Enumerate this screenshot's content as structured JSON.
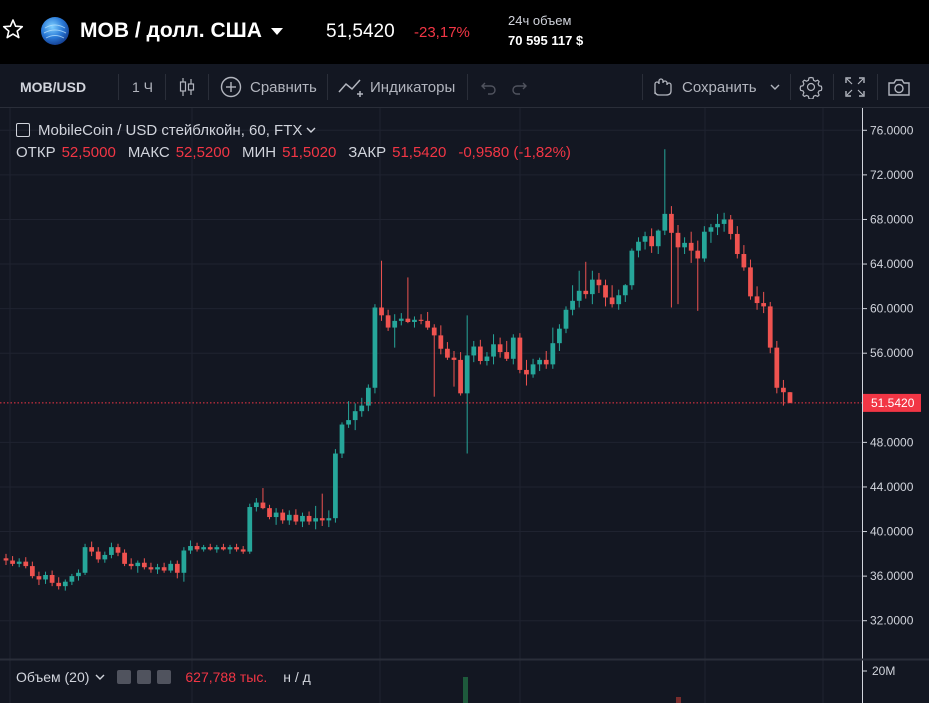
{
  "ticker": {
    "symbol": "MOB / долл. США",
    "price": "51,5420",
    "change": "-23,17%",
    "volume_label": "24ч объем",
    "volume_value": "70 595 117 $"
  },
  "toolbar": {
    "symbol": "MOB/USD",
    "interval": "1 Ч",
    "compare": "Сравнить",
    "indicators": "Индикаторы",
    "save": "Сохранить"
  },
  "legend": {
    "title": "MobileCoin / USD стейблкойн, 60, FTX",
    "open_label": "ОТКР",
    "open": "52,5000",
    "high_label": "МАКС",
    "high": "52,5200",
    "low_label": "МИН",
    "low": "51,5020",
    "close_label": "ЗАКР",
    "close": "51,5420",
    "change": "-0,9580 (-1,82%)"
  },
  "volume_legend": {
    "label": "Объем (20)",
    "value": "627,788 тыс.",
    "na": "н / д"
  },
  "colors": {
    "up": "#26a69a",
    "down": "#ef5350",
    "background": "#131722",
    "grid": "#1f2330",
    "axis_text": "#d1d4dc",
    "last_price": "#f23645"
  },
  "chart_data": {
    "type": "candlestick",
    "ylim": [
      30.0,
      78.0
    ],
    "y_ticks": [
      "76.0000",
      "72.0000",
      "68.0000",
      "64.0000",
      "60.0000",
      "56.0000",
      "48.0000",
      "44.0000",
      "40.0000",
      "36.0000",
      "32.0000"
    ],
    "last_price": "51.5420",
    "volume_axis_label": "20M",
    "grid": true,
    "candles": [
      [
        37.6,
        38.0,
        37.0,
        37.4
      ],
      [
        37.4,
        37.8,
        36.9,
        37.1
      ],
      [
        37.1,
        37.6,
        36.8,
        37.3
      ],
      [
        37.3,
        37.7,
        36.7,
        36.9
      ],
      [
        36.9,
        37.3,
        35.8,
        36.0
      ],
      [
        36.0,
        36.4,
        35.2,
        35.7
      ],
      [
        35.7,
        36.4,
        35.3,
        36.1
      ],
      [
        36.1,
        36.5,
        35.1,
        35.4
      ],
      [
        35.4,
        35.9,
        34.8,
        35.1
      ],
      [
        35.1,
        35.7,
        34.7,
        35.5
      ],
      [
        35.5,
        36.2,
        35.2,
        36.0
      ],
      [
        36.0,
        36.6,
        35.6,
        36.3
      ],
      [
        36.3,
        38.9,
        36.1,
        38.6
      ],
      [
        38.6,
        39.1,
        37.8,
        38.2
      ],
      [
        38.2,
        38.6,
        37.2,
        37.5
      ],
      [
        37.5,
        38.2,
        37.2,
        37.9
      ],
      [
        37.9,
        39.0,
        37.6,
        38.6
      ],
      [
        38.6,
        38.9,
        37.8,
        38.1
      ],
      [
        38.1,
        38.4,
        36.9,
        37.1
      ],
      [
        37.1,
        37.6,
        36.6,
        36.9
      ],
      [
        36.9,
        37.4,
        36.3,
        37.2
      ],
      [
        37.2,
        37.6,
        36.6,
        36.8
      ],
      [
        36.8,
        37.2,
        36.3,
        36.6
      ],
      [
        36.6,
        37.1,
        36.2,
        36.8
      ],
      [
        36.8,
        37.2,
        36.3,
        36.5
      ],
      [
        36.5,
        37.4,
        36.3,
        37.1
      ],
      [
        37.1,
        37.4,
        35.8,
        36.3
      ],
      [
        36.3,
        38.6,
        35.5,
        38.3
      ],
      [
        38.3,
        39.2,
        38.0,
        38.7
      ],
      [
        38.7,
        39.0,
        38.2,
        38.4
      ],
      [
        38.4,
        38.8,
        38.2,
        38.6
      ],
      [
        38.6,
        38.9,
        38.3,
        38.4
      ],
      [
        38.4,
        38.8,
        38.1,
        38.6
      ],
      [
        38.6,
        38.9,
        38.3,
        38.4
      ],
      [
        38.4,
        38.8,
        38.0,
        38.6
      ],
      [
        38.6,
        38.9,
        38.2,
        38.4
      ],
      [
        38.4,
        38.7,
        38.0,
        38.2
      ],
      [
        38.2,
        42.5,
        38.0,
        42.2
      ],
      [
        42.2,
        43.0,
        41.8,
        42.6
      ],
      [
        42.6,
        43.9,
        42.0,
        42.1
      ],
      [
        42.1,
        42.4,
        41.1,
        41.3
      ],
      [
        41.3,
        42.1,
        40.6,
        41.7
      ],
      [
        41.7,
        42.0,
        40.7,
        41.0
      ],
      [
        41.0,
        41.9,
        40.6,
        41.5
      ],
      [
        41.5,
        42.0,
        40.6,
        40.9
      ],
      [
        40.9,
        41.7,
        40.4,
        41.4
      ],
      [
        41.4,
        41.8,
        40.6,
        40.9
      ],
      [
        40.9,
        42.3,
        40.2,
        41.2
      ],
      [
        41.2,
        43.4,
        40.5,
        41.0
      ],
      [
        41.0,
        41.9,
        40.4,
        41.2
      ],
      [
        41.2,
        47.4,
        40.8,
        47.0
      ],
      [
        47.0,
        49.8,
        46.6,
        49.6
      ],
      [
        49.6,
        51.7,
        49.3,
        50.0
      ],
      [
        50.0,
        51.5,
        49.1,
        50.8
      ],
      [
        50.8,
        52.0,
        50.3,
        51.3
      ],
      [
        51.3,
        53.2,
        50.8,
        52.9
      ],
      [
        52.9,
        60.4,
        52.4,
        60.1
      ],
      [
        60.1,
        64.3,
        58.9,
        59.4
      ],
      [
        59.4,
        59.9,
        58.0,
        58.3
      ],
      [
        58.3,
        59.5,
        56.5,
        58.9
      ],
      [
        58.9,
        59.6,
        58.5,
        59.1
      ],
      [
        59.1,
        62.8,
        58.7,
        58.8
      ],
      [
        58.8,
        59.3,
        58.3,
        59.0
      ],
      [
        59.0,
        59.5,
        58.6,
        58.9
      ],
      [
        58.9,
        59.7,
        58.1,
        58.3
      ],
      [
        58.3,
        58.6,
        52.1,
        57.6
      ],
      [
        57.6,
        58.5,
        55.9,
        56.4
      ],
      [
        56.4,
        57.0,
        55.4,
        55.6
      ],
      [
        55.6,
        56.2,
        53.0,
        55.4
      ],
      [
        55.4,
        56.1,
        52.2,
        52.4
      ],
      [
        52.4,
        59.4,
        47.0,
        55.8
      ],
      [
        55.8,
        57.1,
        55.2,
        56.6
      ],
      [
        56.6,
        57.2,
        55.0,
        55.3
      ],
      [
        55.3,
        56.1,
        54.9,
        55.7
      ],
      [
        55.7,
        57.7,
        55.0,
        56.8
      ],
      [
        56.8,
        57.4,
        55.6,
        56.1
      ],
      [
        56.1,
        57.1,
        55.3,
        55.5
      ],
      [
        55.5,
        57.7,
        55.0,
        57.4
      ],
      [
        57.4,
        57.8,
        54.2,
        54.5
      ],
      [
        54.5,
        55.4,
        53.1,
        54.1
      ],
      [
        54.1,
        55.5,
        53.8,
        55.0
      ],
      [
        55.0,
        55.6,
        54.4,
        55.4
      ],
      [
        55.4,
        56.2,
        54.6,
        55.0
      ],
      [
        55.0,
        58.3,
        54.6,
        56.9
      ],
      [
        56.9,
        58.6,
        56.2,
        58.2
      ],
      [
        58.2,
        60.2,
        57.8,
        59.9
      ],
      [
        59.9,
        62.1,
        59.4,
        60.7
      ],
      [
        60.7,
        63.4,
        60.1,
        61.6
      ],
      [
        61.6,
        64.2,
        60.9,
        61.3
      ],
      [
        61.3,
        63.4,
        60.4,
        62.6
      ],
      [
        62.6,
        63.2,
        61.4,
        62.1
      ],
      [
        62.1,
        62.6,
        60.2,
        61.0
      ],
      [
        61.0,
        62.1,
        60.1,
        60.4
      ],
      [
        60.4,
        61.7,
        59.9,
        61.2
      ],
      [
        61.2,
        62.2,
        60.6,
        62.1
      ],
      [
        62.1,
        65.4,
        61.7,
        65.2
      ],
      [
        65.2,
        66.4,
        64.6,
        66.0
      ],
      [
        66.0,
        66.9,
        65.3,
        66.5
      ],
      [
        66.5,
        67.2,
        65.0,
        65.6
      ],
      [
        65.6,
        67.1,
        64.9,
        67.0
      ],
      [
        67.0,
        74.3,
        66.6,
        68.5
      ],
      [
        68.5,
        69.2,
        60.1,
        66.8
      ],
      [
        66.8,
        67.5,
        60.4,
        65.5
      ],
      [
        65.5,
        66.4,
        64.9,
        65.9
      ],
      [
        65.9,
        66.9,
        64.1,
        65.2
      ],
      [
        65.2,
        66.1,
        59.8,
        64.5
      ],
      [
        64.5,
        67.4,
        64.2,
        66.9
      ],
      [
        66.9,
        67.6,
        65.9,
        67.3
      ],
      [
        67.3,
        68.5,
        66.6,
        67.6
      ],
      [
        67.6,
        68.6,
        66.9,
        68.0
      ],
      [
        68.0,
        68.4,
        66.2,
        66.7
      ],
      [
        66.7,
        67.4,
        64.5,
        64.9
      ],
      [
        64.9,
        65.7,
        63.4,
        63.7
      ],
      [
        63.7,
        64.4,
        60.8,
        61.1
      ],
      [
        61.1,
        62.0,
        59.9,
        60.5
      ],
      [
        60.5,
        61.5,
        59.6,
        60.2
      ],
      [
        60.2,
        60.6,
        56.0,
        56.5
      ],
      [
        56.5,
        57.1,
        52.4,
        52.9
      ],
      [
        52.9,
        53.6,
        51.3,
        52.5
      ],
      [
        52.5,
        52.52,
        51.502,
        51.542
      ]
    ]
  }
}
